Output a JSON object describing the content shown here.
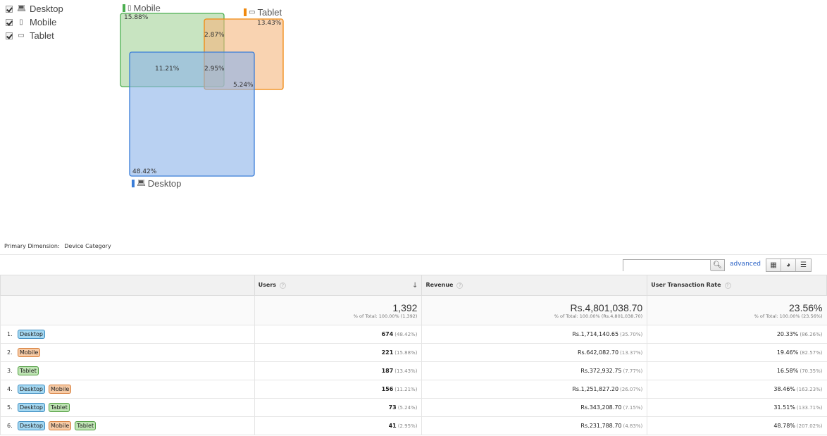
{
  "legend": [
    {
      "label": "Desktop",
      "icon": "laptop-icon",
      "checked": true
    },
    {
      "label": "Mobile",
      "icon": "phone-icon",
      "checked": true
    },
    {
      "label": "Tablet",
      "icon": "tablet-icon",
      "checked": true
    }
  ],
  "venn": {
    "labels": {
      "mobile": "Mobile",
      "tablet": "Tablet",
      "desktop": "Desktop"
    },
    "colors": {
      "mobile": "#4caf50",
      "tablet": "#f0890f",
      "desktop": "#3a7dd8"
    },
    "percents": {
      "mobile_only": "15.88%",
      "tablet_only": "13.43%",
      "mobile_tablet": "2.87%",
      "desktop_mobile": "11.21%",
      "all_three": "2.95%",
      "desktop_tablet": "5.24%",
      "desktop_only": "48.42%"
    }
  },
  "primary_dimension": {
    "label": "Primary Dimension:",
    "value": "Device Category"
  },
  "toolbar": {
    "search_placeholder": "",
    "advanced_label": "advanced"
  },
  "table": {
    "headers": {
      "users": "Users",
      "revenue": "Revenue",
      "utr": "User Transaction Rate"
    },
    "totals": {
      "users": "1,392",
      "users_sub": "% of Total: 100.00% (1,392)",
      "revenue": "Rs.4,801,038.70",
      "revenue_sub": "% of Total: 100.00% (Rs.4,801,038.70)",
      "utr": "23.56%",
      "utr_sub": "% of Total: 100.00% (23.56%)"
    },
    "rows": [
      {
        "num": "1.",
        "chips": [
          "Desktop"
        ],
        "users": "674",
        "users_pct": "(48.42%)",
        "revenue": "Rs.1,714,140.65",
        "revenue_pct": "(35.70%)",
        "utr": "20.33%",
        "utr_pct": "(86.26%)"
      },
      {
        "num": "2.",
        "chips": [
          "Mobile"
        ],
        "users": "221",
        "users_pct": "(15.88%)",
        "revenue": "Rs.642,082.70",
        "revenue_pct": "(13.37%)",
        "utr": "19.46%",
        "utr_pct": "(82.57%)"
      },
      {
        "num": "3.",
        "chips": [
          "Tablet"
        ],
        "users": "187",
        "users_pct": "(13.43%)",
        "revenue": "Rs.372,932.75",
        "revenue_pct": "(7.77%)",
        "utr": "16.58%",
        "utr_pct": "(70.35%)"
      },
      {
        "num": "4.",
        "chips": [
          "Desktop",
          "Mobile"
        ],
        "users": "156",
        "users_pct": "(11.21%)",
        "revenue": "Rs.1,251,827.20",
        "revenue_pct": "(26.07%)",
        "utr": "38.46%",
        "utr_pct": "(163.23%)"
      },
      {
        "num": "5.",
        "chips": [
          "Desktop",
          "Tablet"
        ],
        "users": "73",
        "users_pct": "(5.24%)",
        "revenue": "Rs.343,208.70",
        "revenue_pct": "(7.15%)",
        "utr": "31.51%",
        "utr_pct": "(133.71%)"
      },
      {
        "num": "6.",
        "chips": [
          "Desktop",
          "Mobile",
          "Tablet"
        ],
        "users": "41",
        "users_pct": "(2.95%)",
        "revenue": "Rs.231,788.70",
        "revenue_pct": "(4.83%)",
        "utr": "48.78%",
        "utr_pct": "(207.02%)"
      }
    ]
  }
}
